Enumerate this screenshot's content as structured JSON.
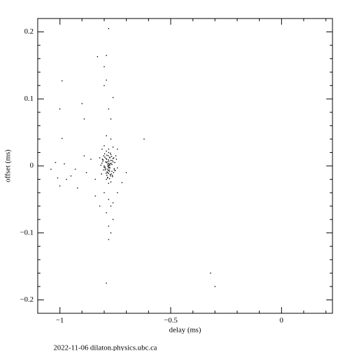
{
  "chart_data": {
    "type": "scatter",
    "x_label": "delay (ms)",
    "y_label": "offset (ms)",
    "footer": "2022-11-06  dilaton.physics.ubc.ca",
    "color": "#000000",
    "xlim": [
      -1.1,
      0.23
    ],
    "ylim": [
      -0.22,
      0.22
    ],
    "xticks": [
      {
        "value": -1,
        "label": "−1"
      },
      {
        "value": -0.5,
        "label": "−0.5"
      },
      0
    ],
    "yticks": [
      {
        "value": -0.2,
        "label": "−0.2"
      },
      {
        "value": -0.1,
        "label": "−0.1"
      },
      0,
      0.1,
      0.2
    ],
    "xminor": [
      -1.1,
      -0.9,
      -0.8,
      -0.7,
      -0.6,
      -0.4,
      -0.3,
      -0.2,
      -0.1,
      0.1,
      0.2
    ],
    "yminor": [
      -0.22,
      -0.18,
      -0.16,
      -0.14,
      -0.12,
      -0.08,
      -0.06,
      -0.04,
      -0.02,
      0.02,
      0.04,
      0.06,
      0.08,
      0.12,
      0.14,
      0.16,
      0.18,
      0.22
    ],
    "x": [
      -0.78,
      -0.83,
      -0.79,
      -0.8,
      -0.79,
      -0.8,
      -0.99,
      -1.0,
      -0.9,
      -0.76,
      -0.78,
      -0.77,
      -0.89,
      -0.62,
      -0.99,
      -0.79,
      -0.77,
      -0.8,
      -0.76,
      -0.81,
      -0.74,
      -1.04,
      -1.01,
      -1.0,
      -0.98,
      -0.95,
      -0.92,
      -0.88,
      -0.86,
      -0.89,
      -0.84,
      -0.72,
      -0.7,
      -0.82,
      -0.84,
      -0.8,
      -0.78,
      -0.77,
      -0.79,
      -0.76,
      -0.78,
      -0.77,
      -0.78,
      -0.76,
      -0.74,
      -0.79,
      -0.32,
      -0.3,
      -0.97,
      -0.93,
      -1.02,
      -0.79,
      -0.78,
      -0.77,
      -0.785,
      -0.775,
      -0.795,
      -0.765,
      -0.805,
      -0.755,
      -0.78,
      -0.782,
      -0.788,
      -0.772,
      -0.776,
      -0.792,
      -0.768,
      -0.8,
      -0.76,
      -0.81,
      -0.75,
      -0.783,
      -0.779,
      -0.786,
      -0.774,
      -0.791,
      -0.769,
      -0.798,
      -0.762,
      -0.815,
      -0.745,
      -0.781,
      -0.787,
      -0.773,
      -0.777,
      -0.793,
      -0.767,
      -0.803,
      -0.758,
      -0.82,
      -0.74,
      -0.784,
      -0.778,
      -0.789,
      -0.771,
      -0.796,
      -0.764,
      -0.808,
      -0.752,
      -0.812,
      -0.748,
      -0.78,
      -0.79,
      -0.77,
      -0.785,
      -0.775,
      -0.795,
      -0.765,
      -0.8,
      -0.76,
      -0.78,
      -0.786,
      -0.774,
      -0.781,
      -0.779,
      -0.797,
      -0.763,
      -0.806,
      -0.754,
      -0.783,
      -0.777,
      -0.788,
      -0.772,
      -0.784,
      -0.776,
      -0.79,
      -0.77,
      -0.802,
      -0.757,
      -0.78,
      -0.78
    ],
    "values": [
      0.205,
      0.163,
      0.165,
      0.148,
      0.128,
      0.12,
      0.127,
      0.085,
      0.093,
      0.102,
      0.085,
      0.07,
      0.07,
      0.04,
      0.041,
      0.045,
      0.04,
      0.03,
      0.028,
      0.025,
      0.025,
      -0.005,
      -0.018,
      -0.03,
      0.003,
      -0.015,
      -0.033,
      -0.01,
      0.01,
      0.015,
      -0.02,
      -0.025,
      -0.01,
      -0.06,
      -0.045,
      -0.04,
      -0.05,
      -0.06,
      -0.07,
      -0.08,
      -0.09,
      -0.1,
      -0.11,
      -0.055,
      -0.04,
      -0.175,
      -0.16,
      -0.18,
      -0.02,
      -0.005,
      0.005,
      0.005,
      -0.003,
      0.008,
      -0.01,
      0.012,
      -0.006,
      0.002,
      0.009,
      -0.004,
      0.0,
      0.015,
      -0.014,
      0.003,
      -0.008,
      0.011,
      -0.012,
      -0.002,
      0.006,
      0.004,
      -0.007,
      -0.001,
      0.007,
      -0.005,
      0.013,
      -0.011,
      0.004,
      0.018,
      -0.016,
      0.001,
      0.01,
      0.009,
      -0.009,
      -0.013,
      0.002,
      0.006,
      0.014,
      -0.006,
      -0.01,
      0.012,
      -0.003,
      0.003,
      -0.006,
      0.01,
      -0.015,
      -0.002,
      0.008,
      0.01,
      0.005,
      -0.012,
      0.015,
      0.02,
      -0.02,
      0.017,
      -0.018,
      0.001,
      -0.004,
      -0.008,
      0.0,
      0.011,
      -0.011,
      0.006,
      -0.003,
      -0.007,
      0.004,
      0.013,
      -0.014,
      0.007,
      -0.006,
      0.001,
      -0.002,
      0.016,
      0.019,
      -0.017,
      -0.019,
      0.022,
      -0.024,
      0.015,
      0.012,
      0.025,
      -0.026
    ]
  }
}
